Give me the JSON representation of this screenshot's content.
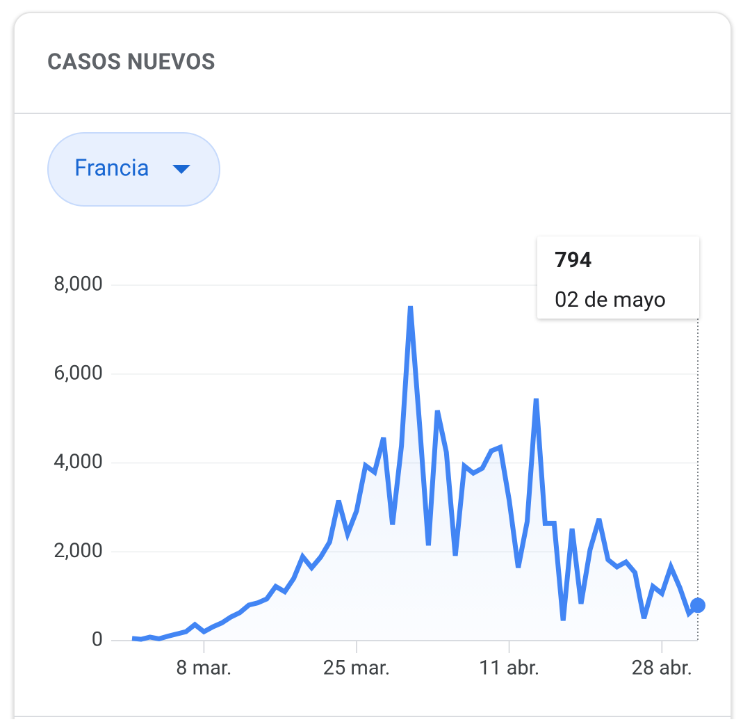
{
  "chart_data": {
    "type": "line",
    "title": "CASOS NUEVOS",
    "dropdown": "Francia",
    "categories": [
      null,
      null,
      null,
      null,
      null,
      null,
      null,
      null,
      "8 mar.",
      null,
      null,
      null,
      null,
      null,
      null,
      null,
      null,
      null,
      null,
      null,
      null,
      null,
      null,
      null,
      null,
      "25 mar.",
      null,
      null,
      null,
      null,
      null,
      null,
      null,
      null,
      null,
      null,
      null,
      null,
      null,
      null,
      null,
      null,
      "11 abr.",
      null,
      null,
      null,
      null,
      null,
      null,
      null,
      null,
      null,
      null,
      null,
      null,
      null,
      null,
      null,
      null,
      "28 abr.",
      null,
      null,
      null,
      null
    ],
    "values": [
      50,
      30,
      80,
      40,
      100,
      150,
      200,
      360,
      200,
      310,
      400,
      530,
      630,
      800,
      850,
      940,
      1220,
      1100,
      1400,
      1890,
      1640,
      1880,
      2220,
      3150,
      2400,
      2920,
      3940,
      3790,
      4570,
      2610,
      4380,
      7530,
      4900,
      2140,
      5180,
      4240,
      1910,
      3930,
      3770,
      3880,
      4270,
      4350,
      3150,
      1640,
      2680,
      5450,
      2640,
      2640,
      450,
      2520,
      830,
      2050,
      2740,
      1820,
      1660,
      1770,
      1530,
      500,
      1220,
      1060,
      1660,
      1190,
      610,
      794
    ],
    "color": "#4285f4",
    "ylim": [
      0,
      8000
    ],
    "yticks": [
      0,
      {
        "value": 2000,
        "label": "2,000"
      },
      {
        "value": 4000,
        "label": "4,000"
      },
      {
        "value": 6000,
        "label": "6,000"
      },
      {
        "value": 8000,
        "label": "8,000"
      }
    ],
    "grid": true,
    "tooltip_label": "02 de mayo"
  }
}
